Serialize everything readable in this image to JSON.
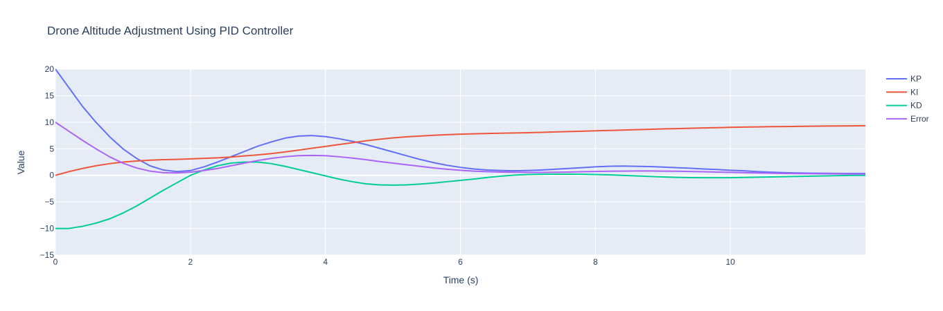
{
  "chart_data": {
    "type": "line",
    "title": "Drone Altitude Adjustment Using PID Controller",
    "xlabel": "Time (s)",
    "ylabel": "Value",
    "xlim": [
      0,
      12
    ],
    "ylim": [
      -15,
      20
    ],
    "x_ticks": [
      0,
      2,
      4,
      6,
      8,
      10
    ],
    "x_tick_labels": [
      "0",
      "2",
      "4",
      "6",
      "8",
      "10"
    ],
    "y_ticks": [
      -15,
      -10,
      -5,
      0,
      5,
      10,
      15,
      20
    ],
    "y_tick_labels": [
      "−15",
      "−10",
      "−5",
      "0",
      "5",
      "10",
      "15",
      "20"
    ],
    "grid": true,
    "plot_bg": "#e5ecf6",
    "legend_position": "right",
    "x": [
      0,
      0.2,
      0.4,
      0.6,
      0.8,
      1.0,
      1.2,
      1.4,
      1.6,
      1.8,
      2.0,
      2.2,
      2.4,
      2.6,
      2.8,
      3.0,
      3.2,
      3.4,
      3.6,
      3.8,
      4.0,
      4.2,
      4.4,
      4.6,
      4.8,
      5.0,
      5.2,
      5.4,
      5.6,
      5.8,
      6.0,
      6.2,
      6.4,
      6.6,
      6.8,
      7.0,
      7.2,
      7.4,
      7.6,
      7.8,
      8.0,
      8.2,
      8.4,
      8.6,
      8.8,
      9.0,
      9.2,
      9.4,
      9.6,
      9.8,
      10.0,
      10.2,
      10.4,
      10.6,
      10.8,
      11.0,
      11.2,
      11.4,
      11.6,
      11.8,
      12.0
    ],
    "series": [
      {
        "name": "KP",
        "color": "#636efa",
        "values": [
          20,
          16.5,
          13.0,
          10.0,
          7.3,
          5.0,
          3.2,
          1.8,
          1.0,
          0.7,
          0.9,
          1.6,
          2.5,
          3.5,
          4.5,
          5.5,
          6.3,
          7.0,
          7.4,
          7.5,
          7.3,
          6.9,
          6.4,
          5.8,
          5.1,
          4.4,
          3.7,
          3.0,
          2.4,
          1.9,
          1.5,
          1.2,
          1.0,
          0.9,
          0.85,
          0.9,
          1.0,
          1.15,
          1.3,
          1.45,
          1.6,
          1.7,
          1.75,
          1.7,
          1.65,
          1.55,
          1.45,
          1.35,
          1.2,
          1.1,
          0.95,
          0.85,
          0.7,
          0.6,
          0.5,
          0.45,
          0.4,
          0.38,
          0.36,
          0.35,
          0.35
        ]
      },
      {
        "name": "KI",
        "color": "#ef553b",
        "values": [
          0,
          0.7,
          1.3,
          1.8,
          2.2,
          2.5,
          2.7,
          2.85,
          2.95,
          3.0,
          3.1,
          3.2,
          3.3,
          3.45,
          3.65,
          3.85,
          4.1,
          4.4,
          4.75,
          5.1,
          5.45,
          5.8,
          6.15,
          6.5,
          6.8,
          7.05,
          7.25,
          7.4,
          7.55,
          7.65,
          7.75,
          7.82,
          7.88,
          7.93,
          7.98,
          8.03,
          8.1,
          8.17,
          8.24,
          8.31,
          8.38,
          8.45,
          8.52,
          8.6,
          8.67,
          8.74,
          8.8,
          8.86,
          8.92,
          8.98,
          9.04,
          9.08,
          9.12,
          9.16,
          9.19,
          9.22,
          9.25,
          9.28,
          9.3,
          9.32,
          9.35
        ]
      },
      {
        "name": "KD",
        "color": "#00cc96",
        "values": [
          -10,
          -10,
          -9.6,
          -9.0,
          -8.2,
          -7.1,
          -5.8,
          -4.3,
          -2.8,
          -1.4,
          0,
          1.0,
          1.8,
          2.3,
          2.5,
          2.5,
          2.2,
          1.7,
          1.1,
          0.5,
          -0.1,
          -0.7,
          -1.2,
          -1.6,
          -1.8,
          -1.85,
          -1.8,
          -1.65,
          -1.45,
          -1.2,
          -0.95,
          -0.7,
          -0.4,
          -0.15,
          0.05,
          0.15,
          0.2,
          0.22,
          0.22,
          0.2,
          0.15,
          0.1,
          0.0,
          -0.1,
          -0.2,
          -0.3,
          -0.38,
          -0.42,
          -0.45,
          -0.45,
          -0.44,
          -0.4,
          -0.35,
          -0.3,
          -0.25,
          -0.2,
          -0.15,
          -0.1,
          -0.05,
          0.0,
          0.0
        ]
      },
      {
        "name": "Error",
        "color": "#ab63fa",
        "values": [
          10,
          8.3,
          6.6,
          5.0,
          3.5,
          2.3,
          1.4,
          0.8,
          0.5,
          0.45,
          0.6,
          0.9,
          1.3,
          1.8,
          2.3,
          2.8,
          3.2,
          3.5,
          3.7,
          3.75,
          3.7,
          3.5,
          3.25,
          2.95,
          2.6,
          2.3,
          2.0,
          1.7,
          1.4,
          1.15,
          0.95,
          0.8,
          0.7,
          0.62,
          0.58,
          0.55,
          0.55,
          0.58,
          0.62,
          0.67,
          0.72,
          0.77,
          0.8,
          0.82,
          0.82,
          0.8,
          0.77,
          0.73,
          0.68,
          0.62,
          0.56,
          0.5,
          0.45,
          0.4,
          0.36,
          0.32,
          0.3,
          0.28,
          0.27,
          0.26,
          0.25
        ]
      }
    ]
  }
}
